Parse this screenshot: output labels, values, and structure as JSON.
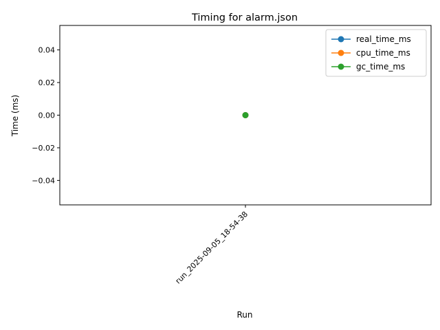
{
  "chart_data": {
    "type": "line",
    "title": "Timing for alarm.json",
    "xlabel": "Run",
    "ylabel": "Time (ms)",
    "categories": [
      "run_2025-09-05_18-54-38"
    ],
    "ylim": [
      -0.055,
      0.055
    ],
    "yticks": [
      -0.04,
      -0.02,
      0.0,
      0.02,
      0.04
    ],
    "ytick_labels": [
      "−0.04",
      "−0.02",
      "0.00",
      "0.02",
      "0.04"
    ],
    "grid": false,
    "legend_position": "top-right",
    "series": [
      {
        "name": "real_time_ms",
        "values": [
          0
        ],
        "color": "#1f77b4",
        "marker": "circle"
      },
      {
        "name": "cpu_time_ms",
        "values": [
          0
        ],
        "color": "#ff7f0e",
        "marker": "circle"
      },
      {
        "name": "gc_time_ms",
        "values": [
          0
        ],
        "color": "#2ca02c",
        "marker": "circle"
      }
    ]
  }
}
